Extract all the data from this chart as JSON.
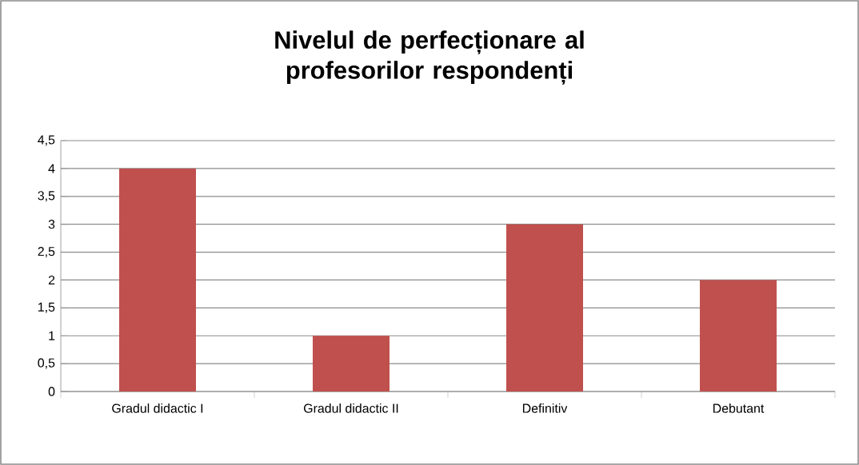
{
  "chart_data": {
    "type": "bar",
    "title": "Nivelul de perfecționare al profesorilor respondenți",
    "categories": [
      "Gradul didactic I",
      "Gradul didactic II",
      "Definitiv",
      "Debutant"
    ],
    "values": [
      4,
      1,
      3,
      2
    ],
    "color": "#c0504d",
    "ylim": [
      0,
      4.5
    ],
    "yticks": [
      0,
      {
        "value": 0.5,
        "label": "0,5"
      },
      1,
      {
        "value": 1.5,
        "label": "1,5"
      },
      2,
      {
        "value": 2.5,
        "label": "2,5"
      },
      3,
      {
        "value": 3.5,
        "label": "3,5"
      },
      4,
      {
        "value": 4.5,
        "label": "4,5"
      }
    ],
    "grid": "y"
  }
}
